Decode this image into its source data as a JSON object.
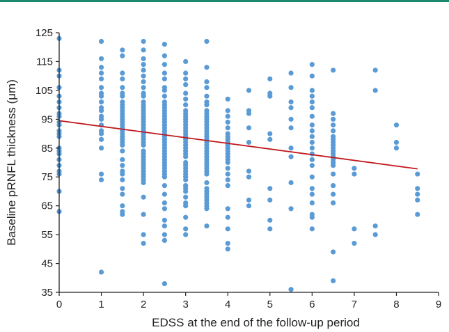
{
  "colors": {
    "top_rule": "#1a8a6e",
    "points": "#5b9bd5",
    "trend_line": "#c0191e",
    "axis": "#222222"
  },
  "chart_data": {
    "type": "scatter",
    "xlabel": "EDSS at the end of the follow-up period",
    "ylabel": "Baseline pRNFL thickness (μm)",
    "xlim": [
      0,
      9
    ],
    "ylim": [
      35,
      125
    ],
    "x_ticks": [
      0,
      1,
      2,
      3,
      4,
      5,
      6,
      7,
      8,
      9
    ],
    "y_ticks": [
      35,
      45,
      55,
      65,
      75,
      85,
      95,
      105,
      115,
      125
    ],
    "grid": false,
    "legend": "none",
    "trend_line": {
      "x": [
        0,
        8.5
      ],
      "y": [
        94.5,
        77.8
      ]
    },
    "points": [
      [
        0,
        123
      ],
      [
        0,
        112
      ],
      [
        0,
        110
      ],
      [
        0,
        106
      ],
      [
        0,
        103
      ],
      [
        0,
        101
      ],
      [
        0,
        99
      ],
      [
        0,
        97
      ],
      [
        0,
        96
      ],
      [
        0,
        94
      ],
      [
        0,
        93
      ],
      [
        0,
        91
      ],
      [
        0,
        90
      ],
      [
        0,
        89
      ],
      [
        0,
        85
      ],
      [
        0,
        84
      ],
      [
        0,
        83
      ],
      [
        0,
        81
      ],
      [
        0,
        79
      ],
      [
        0,
        77
      ],
      [
        0,
        76
      ],
      [
        0,
        70
      ],
      [
        0,
        63
      ],
      [
        1,
        122
      ],
      [
        1,
        116
      ],
      [
        1,
        113
      ],
      [
        1,
        111
      ],
      [
        1,
        109
      ],
      [
        1,
        106
      ],
      [
        1,
        104
      ],
      [
        1,
        103
      ],
      [
        1,
        101
      ],
      [
        1,
        99
      ],
      [
        1,
        98
      ],
      [
        1,
        96
      ],
      [
        1,
        95
      ],
      [
        1,
        93
      ],
      [
        1,
        91
      ],
      [
        1,
        90
      ],
      [
        1,
        88
      ],
      [
        1,
        85
      ],
      [
        1,
        76
      ],
      [
        1,
        74
      ],
      [
        1,
        42
      ],
      [
        1.5,
        119
      ],
      [
        1.5,
        117
      ],
      [
        1.5,
        111
      ],
      [
        1.5,
        109
      ],
      [
        1.5,
        106
      ],
      [
        1.5,
        104
      ],
      [
        1.5,
        103
      ],
      [
        1.5,
        101
      ],
      [
        1.5,
        100
      ],
      [
        1.5,
        99
      ],
      [
        1.5,
        98
      ],
      [
        1.5,
        97
      ],
      [
        1.5,
        96
      ],
      [
        1.5,
        95
      ],
      [
        1.5,
        94
      ],
      [
        1.5,
        93
      ],
      [
        1.5,
        92
      ],
      [
        1.5,
        91
      ],
      [
        1.5,
        90
      ],
      [
        1.5,
        89
      ],
      [
        1.5,
        88
      ],
      [
        1.5,
        87
      ],
      [
        1.5,
        86
      ],
      [
        1.5,
        84
      ],
      [
        1.5,
        81
      ],
      [
        1.5,
        79
      ],
      [
        1.5,
        77
      ],
      [
        1.5,
        76
      ],
      [
        1.5,
        74
      ],
      [
        1.5,
        71
      ],
      [
        1.5,
        69
      ],
      [
        1.5,
        65
      ],
      [
        1.5,
        63
      ],
      [
        1.5,
        62
      ],
      [
        2,
        122
      ],
      [
        2,
        119
      ],
      [
        2,
        116
      ],
      [
        2,
        114
      ],
      [
        2,
        112
      ],
      [
        2,
        110
      ],
      [
        2,
        108
      ],
      [
        2,
        106
      ],
      [
        2,
        104
      ],
      [
        2,
        103
      ],
      [
        2,
        101
      ],
      [
        2,
        100
      ],
      [
        2,
        99
      ],
      [
        2,
        98
      ],
      [
        2,
        97
      ],
      [
        2,
        96
      ],
      [
        2,
        95
      ],
      [
        2,
        94
      ],
      [
        2,
        93
      ],
      [
        2,
        92
      ],
      [
        2,
        91
      ],
      [
        2,
        90
      ],
      [
        2,
        89
      ],
      [
        2,
        88
      ],
      [
        2,
        87
      ],
      [
        2,
        86
      ],
      [
        2,
        84
      ],
      [
        2,
        83
      ],
      [
        2,
        82
      ],
      [
        2,
        81
      ],
      [
        2,
        80
      ],
      [
        2,
        79
      ],
      [
        2,
        78
      ],
      [
        2,
        77
      ],
      [
        2,
        76
      ],
      [
        2,
        75
      ],
      [
        2,
        74
      ],
      [
        2,
        73
      ],
      [
        2,
        68
      ],
      [
        2,
        62
      ],
      [
        2,
        55
      ],
      [
        2,
        52
      ],
      [
        2.5,
        121
      ],
      [
        2.5,
        117
      ],
      [
        2.5,
        114
      ],
      [
        2.5,
        111
      ],
      [
        2.5,
        109
      ],
      [
        2.5,
        106
      ],
      [
        2.5,
        105
      ],
      [
        2.5,
        103
      ],
      [
        2.5,
        101
      ],
      [
        2.5,
        100
      ],
      [
        2.5,
        99
      ],
      [
        2.5,
        98
      ],
      [
        2.5,
        97
      ],
      [
        2.5,
        96
      ],
      [
        2.5,
        95
      ],
      [
        2.5,
        94
      ],
      [
        2.5,
        93
      ],
      [
        2.5,
        92
      ],
      [
        2.5,
        91
      ],
      [
        2.5,
        90
      ],
      [
        2.5,
        89
      ],
      [
        2.5,
        88
      ],
      [
        2.5,
        87
      ],
      [
        2.5,
        86
      ],
      [
        2.5,
        85
      ],
      [
        2.5,
        84
      ],
      [
        2.5,
        83
      ],
      [
        2.5,
        82
      ],
      [
        2.5,
        81
      ],
      [
        2.5,
        80
      ],
      [
        2.5,
        79
      ],
      [
        2.5,
        78
      ],
      [
        2.5,
        77
      ],
      [
        2.5,
        76
      ],
      [
        2.5,
        75
      ],
      [
        2.5,
        72
      ],
      [
        2.5,
        69
      ],
      [
        2.5,
        66
      ],
      [
        2.5,
        64
      ],
      [
        2.5,
        60
      ],
      [
        2.5,
        58
      ],
      [
        2.5,
        55
      ],
      [
        2.5,
        53
      ],
      [
        2.5,
        38
      ],
      [
        3,
        115
      ],
      [
        3,
        111
      ],
      [
        3,
        109
      ],
      [
        3,
        107
      ],
      [
        3,
        104
      ],
      [
        3,
        102
      ],
      [
        3,
        100
      ],
      [
        3,
        98
      ],
      [
        3,
        97
      ],
      [
        3,
        96
      ],
      [
        3,
        95
      ],
      [
        3,
        94
      ],
      [
        3,
        93
      ],
      [
        3,
        92
      ],
      [
        3,
        91
      ],
      [
        3,
        90
      ],
      [
        3,
        89
      ],
      [
        3,
        88
      ],
      [
        3,
        87
      ],
      [
        3,
        86
      ],
      [
        3,
        85
      ],
      [
        3,
        84
      ],
      [
        3,
        83
      ],
      [
        3,
        82
      ],
      [
        3,
        80
      ],
      [
        3,
        79
      ],
      [
        3,
        78
      ],
      [
        3,
        77
      ],
      [
        3,
        76
      ],
      [
        3,
        75
      ],
      [
        3,
        74
      ],
      [
        3,
        72
      ],
      [
        3,
        71
      ],
      [
        3,
        70
      ],
      [
        3,
        68
      ],
      [
        3,
        66
      ],
      [
        3,
        65
      ],
      [
        3,
        61
      ],
      [
        3,
        57
      ],
      [
        3,
        55
      ],
      [
        3.5,
        122
      ],
      [
        3.5,
        113
      ],
      [
        3.5,
        108
      ],
      [
        3.5,
        106
      ],
      [
        3.5,
        103
      ],
      [
        3.5,
        101
      ],
      [
        3.5,
        100
      ],
      [
        3.5,
        98
      ],
      [
        3.5,
        97
      ],
      [
        3.5,
        96
      ],
      [
        3.5,
        95
      ],
      [
        3.5,
        94
      ],
      [
        3.5,
        93
      ],
      [
        3.5,
        92
      ],
      [
        3.5,
        91
      ],
      [
        3.5,
        90
      ],
      [
        3.5,
        89
      ],
      [
        3.5,
        88
      ],
      [
        3.5,
        87
      ],
      [
        3.5,
        86
      ],
      [
        3.5,
        85
      ],
      [
        3.5,
        84
      ],
      [
        3.5,
        83
      ],
      [
        3.5,
        82
      ],
      [
        3.5,
        81
      ],
      [
        3.5,
        80
      ],
      [
        3.5,
        79
      ],
      [
        3.5,
        78
      ],
      [
        3.5,
        77
      ],
      [
        3.5,
        76
      ],
      [
        3.5,
        73
      ],
      [
        3.5,
        71
      ],
      [
        3.5,
        70
      ],
      [
        3.5,
        69
      ],
      [
        3.5,
        68
      ],
      [
        3.5,
        67
      ],
      [
        3.5,
        66
      ],
      [
        3.5,
        65
      ],
      [
        3.5,
        64
      ],
      [
        3.5,
        58
      ],
      [
        4,
        102
      ],
      [
        4,
        98
      ],
      [
        4,
        96
      ],
      [
        4,
        94
      ],
      [
        4,
        92
      ],
      [
        4,
        90
      ],
      [
        4,
        89
      ],
      [
        4,
        88
      ],
      [
        4,
        87
      ],
      [
        4,
        86
      ],
      [
        4,
        85
      ],
      [
        4,
        84
      ],
      [
        4,
        83
      ],
      [
        4,
        82
      ],
      [
        4,
        81
      ],
      [
        4,
        80
      ],
      [
        4,
        78
      ],
      [
        4,
        76
      ],
      [
        4,
        74
      ],
      [
        4,
        72
      ],
      [
        4,
        64
      ],
      [
        4,
        61
      ],
      [
        4,
        57
      ],
      [
        4,
        52
      ],
      [
        4,
        50
      ],
      [
        4.5,
        105
      ],
      [
        4.5,
        98
      ],
      [
        4.5,
        97
      ],
      [
        4.5,
        92
      ],
      [
        4.5,
        87
      ],
      [
        4.5,
        77
      ],
      [
        4.5,
        75
      ],
      [
        4.5,
        67
      ],
      [
        4.5,
        65
      ],
      [
        5,
        109
      ],
      [
        5,
        104
      ],
      [
        5,
        103
      ],
      [
        5,
        90
      ],
      [
        5,
        88
      ],
      [
        5,
        71
      ],
      [
        5,
        67
      ],
      [
        5,
        60
      ],
      [
        5,
        57
      ],
      [
        5.5,
        111
      ],
      [
        5.5,
        106
      ],
      [
        5.5,
        101
      ],
      [
        5.5,
        99
      ],
      [
        5.5,
        95
      ],
      [
        5.5,
        92
      ],
      [
        5.5,
        85
      ],
      [
        5.5,
        82
      ],
      [
        5.5,
        73
      ],
      [
        5.5,
        64
      ],
      [
        5.5,
        36
      ],
      [
        6,
        114
      ],
      [
        6,
        110
      ],
      [
        6,
        105
      ],
      [
        6,
        103
      ],
      [
        6,
        101
      ],
      [
        6,
        99
      ],
      [
        6,
        96
      ],
      [
        6,
        93
      ],
      [
        6,
        91
      ],
      [
        6,
        89
      ],
      [
        6,
        87
      ],
      [
        6,
        85
      ],
      [
        6,
        83
      ],
      [
        6,
        81
      ],
      [
        6,
        79
      ],
      [
        6,
        75
      ],
      [
        6,
        71
      ],
      [
        6,
        69
      ],
      [
        6,
        66
      ],
      [
        6,
        62
      ],
      [
        6,
        61
      ],
      [
        6,
        57
      ],
      [
        6.5,
        112
      ],
      [
        6.5,
        97
      ],
      [
        6.5,
        95
      ],
      [
        6.5,
        93
      ],
      [
        6.5,
        91
      ],
      [
        6.5,
        89
      ],
      [
        6.5,
        88
      ],
      [
        6.5,
        87
      ],
      [
        6.5,
        86
      ],
      [
        6.5,
        85
      ],
      [
        6.5,
        84
      ],
      [
        6.5,
        83
      ],
      [
        6.5,
        82
      ],
      [
        6.5,
        81
      ],
      [
        6.5,
        80
      ],
      [
        6.5,
        79
      ],
      [
        6.5,
        76
      ],
      [
        6.5,
        72
      ],
      [
        6.5,
        69
      ],
      [
        6.5,
        66
      ],
      [
        6.5,
        49
      ],
      [
        6.5,
        39
      ],
      [
        7,
        78
      ],
      [
        7,
        76
      ],
      [
        7,
        57
      ],
      [
        7,
        52
      ],
      [
        7.5,
        112
      ],
      [
        7.5,
        105
      ],
      [
        7.5,
        58
      ],
      [
        7.5,
        55
      ],
      [
        8,
        93
      ],
      [
        8,
        87
      ],
      [
        8,
        85
      ],
      [
        8.5,
        76
      ],
      [
        8.5,
        71
      ],
      [
        8.5,
        69
      ],
      [
        8.5,
        67
      ],
      [
        8.5,
        62
      ]
    ]
  }
}
